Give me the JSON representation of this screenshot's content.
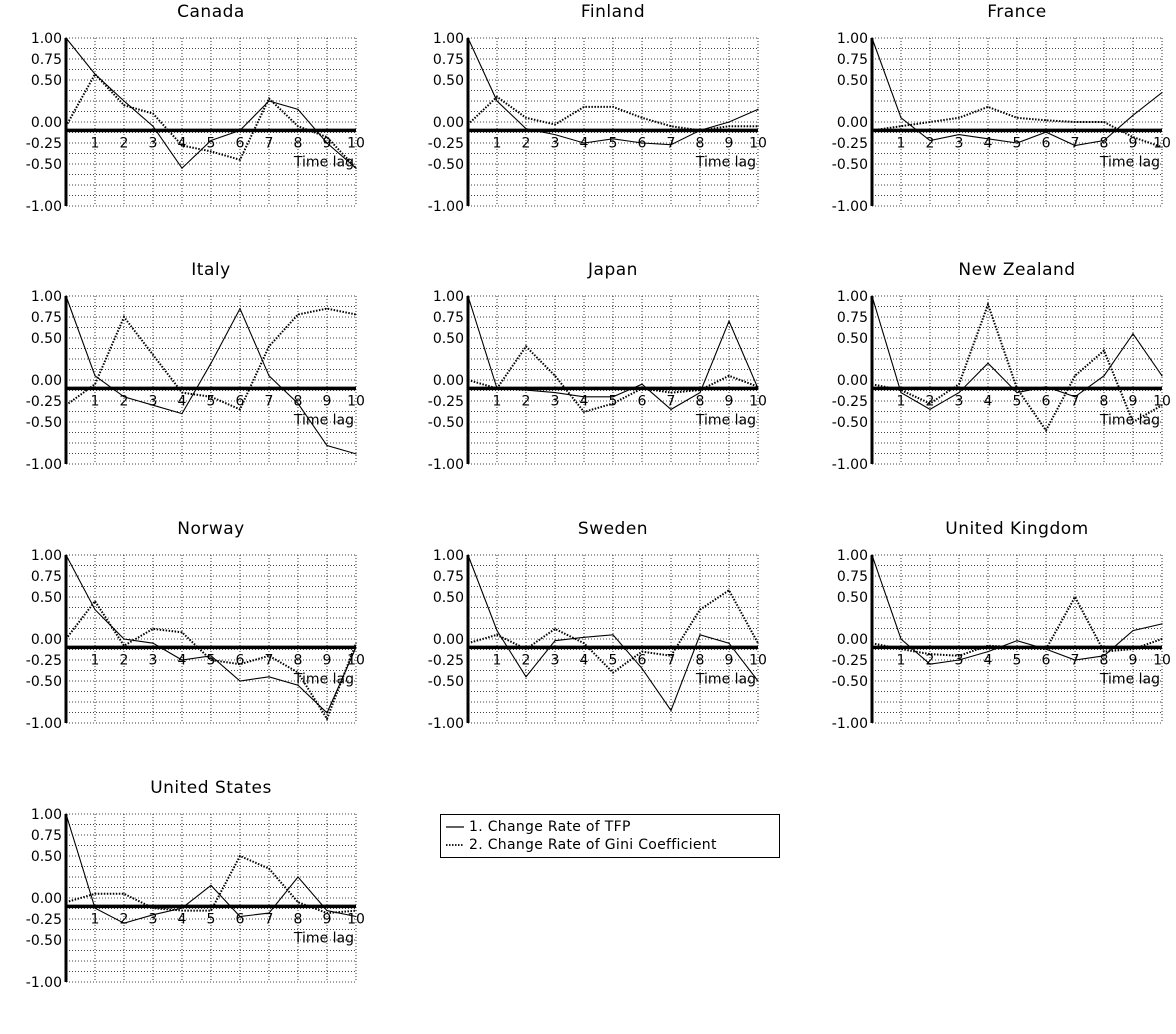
{
  "legend": {
    "tfp_label": "1. Change Rate of TFP",
    "gini_label": "2. Change Rate of Gini Coefficient"
  },
  "chart_data": [
    {
      "type": "line",
      "title": "Canada",
      "xlabel": "Time lag",
      "x": [
        0,
        1,
        2,
        3,
        4,
        5,
        6,
        7,
        8,
        9,
        10
      ],
      "xlim": [
        0,
        10
      ],
      "ylim": [
        -1.0,
        1.0
      ],
      "yticks": [
        "1.00",
        "0.75",
        "0.50",
        "0.00",
        "-0.25",
        "-0.50",
        "-1.00"
      ],
      "grid": true,
      "series": [
        {
          "name": "1. Change Rate of TFP",
          "style": "solid",
          "values": [
            1.0,
            0.57,
            0.25,
            -0.05,
            -0.55,
            -0.22,
            -0.1,
            0.25,
            0.15,
            -0.25,
            -0.55
          ]
        },
        {
          "name": "2. Change Rate of Gini Coefficient",
          "style": "dotted",
          "values": [
            -0.05,
            0.57,
            0.2,
            0.1,
            -0.28,
            -0.35,
            -0.45,
            0.28,
            -0.05,
            -0.18,
            -0.55
          ]
        }
      ]
    },
    {
      "type": "line",
      "title": "Finland",
      "xlabel": "Time lag",
      "x": [
        0,
        1,
        2,
        3,
        4,
        5,
        6,
        7,
        8,
        9,
        10
      ],
      "xlim": [
        0,
        10
      ],
      "ylim": [
        -1.0,
        1.0
      ],
      "yticks": [
        "1.00",
        "0.75",
        "0.50",
        "0.00",
        "-0.25",
        "-0.50",
        "-1.00"
      ],
      "grid": true,
      "series": [
        {
          "name": "1. Change Rate of TFP",
          "style": "solid",
          "values": [
            1.0,
            0.25,
            -0.08,
            -0.15,
            -0.25,
            -0.2,
            -0.25,
            -0.27,
            -0.1,
            0.0,
            0.15
          ]
        },
        {
          "name": "2. Change Rate of Gini Coefficient",
          "style": "dotted",
          "values": [
            -0.03,
            0.3,
            0.05,
            -0.03,
            0.18,
            0.18,
            0.05,
            -0.05,
            -0.1,
            -0.05,
            -0.05
          ]
        }
      ]
    },
    {
      "type": "line",
      "title": "France",
      "xlabel": "Time lag",
      "x": [
        0,
        1,
        2,
        3,
        4,
        5,
        6,
        7,
        8,
        9,
        10
      ],
      "xlim": [
        0,
        10
      ],
      "ylim": [
        -1.0,
        1.0
      ],
      "yticks": [
        "1.00",
        "0.75",
        "0.50",
        "0.00",
        "-0.25",
        "-0.50",
        "-1.00"
      ],
      "grid": true,
      "series": [
        {
          "name": "1. Change Rate of TFP",
          "style": "solid",
          "values": [
            1.0,
            0.05,
            -0.22,
            -0.15,
            -0.2,
            -0.25,
            -0.12,
            -0.28,
            -0.22,
            0.08,
            0.35
          ]
        },
        {
          "name": "2. Change Rate of Gini Coefficient",
          "style": "dotted",
          "values": [
            -0.1,
            -0.05,
            0.0,
            0.05,
            0.18,
            0.05,
            0.02,
            0.0,
            0.0,
            -0.18,
            -0.3
          ]
        }
      ]
    },
    {
      "type": "line",
      "title": "Italy",
      "xlabel": "Time lag",
      "x": [
        0,
        1,
        2,
        3,
        4,
        5,
        6,
        7,
        8,
        9,
        10
      ],
      "xlim": [
        0,
        10
      ],
      "ylim": [
        -1.0,
        1.0
      ],
      "yticks": [
        "1.00",
        "0.75",
        "0.50",
        "0.00",
        "-0.25",
        "-0.50",
        "-1.00"
      ],
      "grid": true,
      "series": [
        {
          "name": "1. Change Rate of TFP",
          "style": "solid",
          "values": [
            1.0,
            0.05,
            -0.2,
            -0.3,
            -0.4,
            0.2,
            0.85,
            0.05,
            -0.28,
            -0.78,
            -0.88
          ]
        },
        {
          "name": "2. Change Rate of Gini Coefficient",
          "style": "dotted",
          "values": [
            -0.3,
            -0.05,
            0.75,
            0.3,
            -0.15,
            -0.2,
            -0.35,
            0.4,
            0.78,
            0.85,
            0.78
          ]
        }
      ]
    },
    {
      "type": "line",
      "title": "Japan",
      "xlabel": "Time lag",
      "x": [
        0,
        1,
        2,
        3,
        4,
        5,
        6,
        7,
        8,
        9,
        10
      ],
      "xlim": [
        0,
        10
      ],
      "ylim": [
        -1.0,
        1.0
      ],
      "yticks": [
        "1.00",
        "0.75",
        "0.50",
        "0.00",
        "-0.25",
        "-0.50",
        "-1.00"
      ],
      "grid": true,
      "series": [
        {
          "name": "1. Change Rate of TFP",
          "style": "solid",
          "values": [
            1.0,
            -0.1,
            -0.12,
            -0.15,
            -0.2,
            -0.2,
            -0.05,
            -0.35,
            -0.15,
            0.7,
            -0.1
          ]
        },
        {
          "name": "2. Change Rate of Gini Coefficient",
          "style": "dotted",
          "values": [
            0.0,
            -0.1,
            0.4,
            0.05,
            -0.38,
            -0.28,
            -0.1,
            -0.15,
            -0.12,
            0.05,
            -0.08
          ]
        }
      ]
    },
    {
      "type": "line",
      "title": "New Zealand",
      "xlabel": "Time lag",
      "x": [
        0,
        1,
        2,
        3,
        4,
        5,
        6,
        7,
        8,
        9,
        10
      ],
      "xlim": [
        0,
        10
      ],
      "ylim": [
        -1.0,
        1.0
      ],
      "yticks": [
        "1.00",
        "0.75",
        "0.50",
        "0.00",
        "-0.25",
        "-0.50",
        "-1.00"
      ],
      "grid": true,
      "series": [
        {
          "name": "1. Change Rate of TFP",
          "style": "solid",
          "values": [
            1.0,
            -0.15,
            -0.35,
            -0.15,
            0.2,
            -0.15,
            -0.08,
            -0.2,
            0.05,
            0.55,
            0.05
          ]
        },
        {
          "name": "2. Change Rate of Gini Coefficient",
          "style": "dotted",
          "values": [
            -0.05,
            -0.12,
            -0.28,
            -0.05,
            0.9,
            -0.1,
            -0.6,
            0.05,
            0.35,
            -0.5,
            -0.3
          ]
        }
      ]
    },
    {
      "type": "line",
      "title": "Norway",
      "xlabel": "Time lag",
      "x": [
        0,
        1,
        2,
        3,
        4,
        5,
        6,
        7,
        8,
        9,
        10
      ],
      "xlim": [
        0,
        10
      ],
      "ylim": [
        -1.0,
        1.0
      ],
      "yticks": [
        "1.00",
        "0.75",
        "0.50",
        "0.00",
        "-0.25",
        "-0.50",
        "-1.00"
      ],
      "grid": true,
      "series": [
        {
          "name": "1. Change Rate of TFP",
          "style": "solid",
          "values": [
            1.0,
            0.35,
            0.0,
            -0.05,
            -0.25,
            -0.2,
            -0.5,
            -0.45,
            -0.55,
            -0.88,
            -0.1
          ]
        },
        {
          "name": "2. Change Rate of Gini Coefficient",
          "style": "dotted",
          "values": [
            0.0,
            0.45,
            -0.08,
            0.12,
            0.08,
            -0.25,
            -0.3,
            -0.2,
            -0.4,
            -0.95,
            -0.05
          ]
        }
      ]
    },
    {
      "type": "line",
      "title": "Sweden",
      "xlabel": "Time lag",
      "x": [
        0,
        1,
        2,
        3,
        4,
        5,
        6,
        7,
        8,
        9,
        10
      ],
      "xlim": [
        0,
        10
      ],
      "ylim": [
        -1.0,
        1.0
      ],
      "yticks": [
        "1.00",
        "0.75",
        "0.50",
        "0.00",
        "-0.25",
        "-0.50",
        "-1.00"
      ],
      "grid": true,
      "series": [
        {
          "name": "1. Change Rate of TFP",
          "style": "solid",
          "values": [
            1.0,
            0.1,
            -0.45,
            -0.02,
            0.02,
            0.05,
            -0.35,
            -0.85,
            0.05,
            -0.05,
            -0.5
          ]
        },
        {
          "name": "2. Change Rate of Gini Coefficient",
          "style": "dotted",
          "values": [
            -0.05,
            0.05,
            -0.12,
            0.12,
            -0.05,
            -0.4,
            -0.15,
            -0.2,
            0.35,
            0.58,
            -0.05
          ]
        }
      ]
    },
    {
      "type": "line",
      "title": "United Kingdom",
      "xlabel": "Time lag",
      "x": [
        0,
        1,
        2,
        3,
        4,
        5,
        6,
        7,
        8,
        9,
        10
      ],
      "xlim": [
        0,
        10
      ],
      "ylim": [
        -1.0,
        1.0
      ],
      "yticks": [
        "1.00",
        "0.75",
        "0.50",
        "0.00",
        "-0.25",
        "-0.50",
        "-1.00"
      ],
      "grid": true,
      "series": [
        {
          "name": "1. Change Rate of TFP",
          "style": "solid",
          "values": [
            1.0,
            0.0,
            -0.3,
            -0.25,
            -0.15,
            -0.02,
            -0.12,
            -0.25,
            -0.2,
            0.1,
            0.18
          ]
        },
        {
          "name": "2. Change Rate of Gini Coefficient",
          "style": "dotted",
          "values": [
            -0.05,
            -0.12,
            -0.18,
            -0.2,
            -0.08,
            -0.1,
            -0.12,
            0.5,
            -0.15,
            -0.12,
            0.0
          ]
        }
      ]
    },
    {
      "type": "line",
      "title": "United States",
      "xlabel": "Time lag",
      "x": [
        0,
        1,
        2,
        3,
        4,
        5,
        6,
        7,
        8,
        9,
        10
      ],
      "xlim": [
        0,
        10
      ],
      "ylim": [
        -1.0,
        1.0
      ],
      "yticks": [
        "1.00",
        "0.75",
        "0.50",
        "0.00",
        "-0.25",
        "-0.50",
        "-1.00"
      ],
      "grid": true,
      "series": [
        {
          "name": "1. Change Rate of TFP",
          "style": "solid",
          "values": [
            1.0,
            -0.12,
            -0.3,
            -0.2,
            -0.12,
            0.15,
            -0.22,
            -0.18,
            0.25,
            -0.15,
            -0.22
          ]
        },
        {
          "name": "2. Change Rate of Gini Coefficient",
          "style": "dotted",
          "values": [
            -0.05,
            0.05,
            0.05,
            -0.12,
            -0.15,
            -0.15,
            0.5,
            0.35,
            -0.05,
            -0.18,
            -0.15
          ]
        }
      ]
    }
  ]
}
